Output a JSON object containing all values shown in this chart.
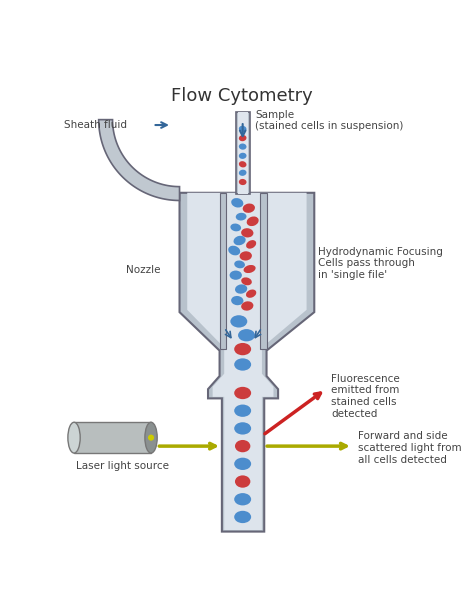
{
  "title": "Flow Cytometry",
  "title_fontsize": 13,
  "title_color": "#333333",
  "bg_color": "#ffffff",
  "nozzle_color": "#b8c2cc",
  "nozzle_edge_color": "#666677",
  "inner_color": "#dde4ec",
  "blue_cell_color": "#4488cc",
  "red_cell_color": "#cc3333",
  "laser_body_color": "#b0b8b8",
  "laser_edge_color": "#777777",
  "laser_dot_color": "#cccc00",
  "arrow_blue_color": "#336699",
  "arrow_red_color": "#cc2222",
  "arrow_yellow_color": "#aaaa00",
  "text_color": "#444444",
  "label_fontsize": 7.5,
  "sheath_fluid_label": "Sheath fluid",
  "sample_label": "Sample\n(stained cells in suspension)",
  "nozzle_label": "Nozzle",
  "hydro_label": "Hydrodynamic Focusing\nCells pass through\nin 'single file'",
  "fluor_label": "Fluorescence\nemitted from\nstained cells\ndetected",
  "scatter_label": "Forward and side\nscattered light from\nall cells detected",
  "laser_label": "Laser light source"
}
